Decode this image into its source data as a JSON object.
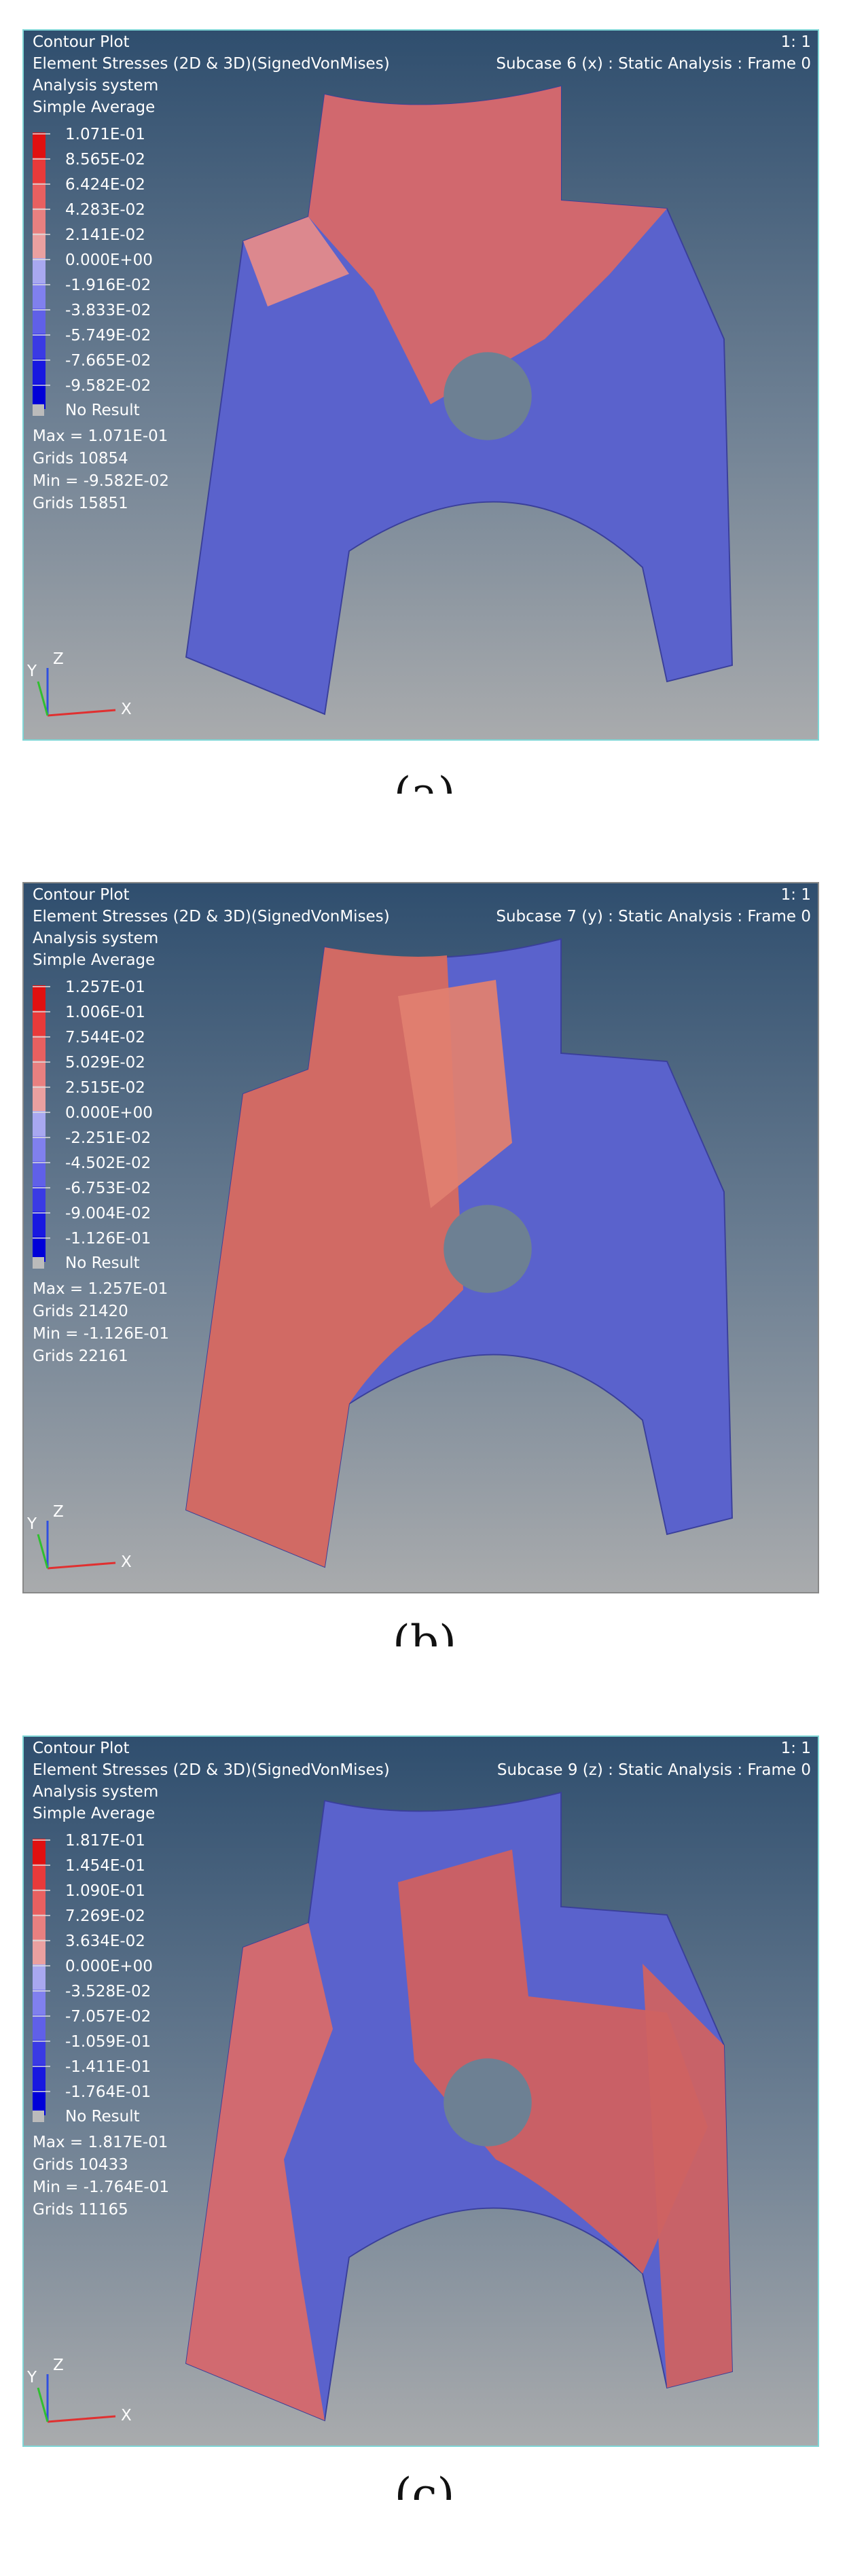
{
  "panels": [
    {
      "header": [
        "Contour Plot",
        "Element Stresses (2D & 3D)(SignedVonMises)",
        "Analysis system",
        "Simple Average"
      ],
      "scale": "1: 1",
      "subcase": "Subcase 6 (x) : Static Analysis : Frame 0",
      "legend": [
        "1.071E-01",
        "8.565E-02",
        "6.424E-02",
        "4.283E-02",
        "2.141E-02",
        "0.000E+00",
        "-1.916E-02",
        "-3.833E-02",
        "-5.749E-02",
        "-7.665E-02",
        "-9.582E-02"
      ],
      "no_result": "No Result",
      "stats": [
        "Max = 1.071E-01",
        "Grids 10854",
        "Min = -9.582E-02",
        "Grids 15851"
      ],
      "axes": {
        "x": "X",
        "y": "Y",
        "z": "Z"
      },
      "caption": "(a)"
    },
    {
      "header": [
        "Contour Plot",
        "Element Stresses (2D & 3D)(SignedVonMises)",
        "Analysis system",
        "Simple Average"
      ],
      "scale": "1: 1",
      "subcase": "Subcase 7 (y) : Static Analysis : Frame 0",
      "legend": [
        "1.257E-01",
        "1.006E-01",
        "7.544E-02",
        "5.029E-02",
        "2.515E-02",
        "0.000E+00",
        "-2.251E-02",
        "-4.502E-02",
        "-6.753E-02",
        "-9.004E-02",
        "-1.126E-01"
      ],
      "no_result": "No Result",
      "stats": [
        "Max = 1.257E-01",
        "Grids 21420",
        "Min = -1.126E-01",
        "Grids 22161"
      ],
      "axes": {
        "x": "X",
        "y": "Y",
        "z": "Z"
      },
      "caption": "(b)"
    },
    {
      "header": [
        "Contour Plot",
        "Element Stresses (2D & 3D)(SignedVonMises)",
        "Analysis system",
        "Simple Average"
      ],
      "scale": "1: 1",
      "subcase": "Subcase 9 (z) : Static Analysis : Frame 0",
      "legend": [
        "1.817E-01",
        "1.454E-01",
        "1.090E-01",
        "7.269E-02",
        "3.634E-02",
        "0.000E+00",
        "-3.528E-02",
        "-7.057E-02",
        "-1.059E-01",
        "-1.411E-01",
        "-1.764E-01"
      ],
      "no_result": "No Result",
      "stats": [
        "Max = 1.817E-01",
        "Grids 10433",
        "Min = -1.764E-01",
        "Grids 11165"
      ],
      "axes": {
        "x": "X",
        "y": "Y",
        "z": "Z"
      },
      "caption": "(c)"
    }
  ]
}
